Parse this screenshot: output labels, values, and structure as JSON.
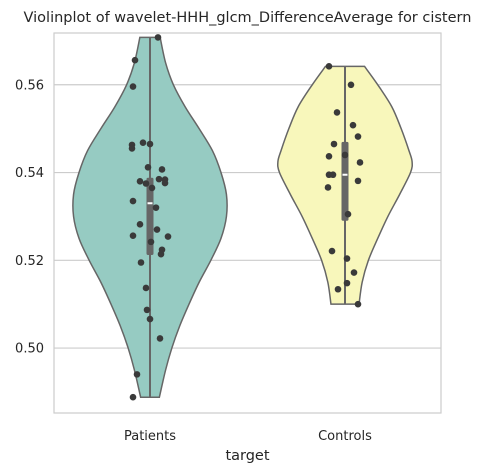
{
  "chart_data": {
    "type": "violin",
    "title": "Violinplot of wavelet-HHH_glcm_DifferenceAverage for cistern",
    "xlabel": "target",
    "ylabel": "",
    "ylim": [
      0.4852,
      0.5718
    ],
    "yticks": [
      0.5,
      0.52,
      0.54,
      0.56
    ],
    "ytick_labels": [
      "0.50",
      "0.52",
      "0.54",
      "0.56"
    ],
    "grid": true,
    "categories": [
      "Patients",
      "Controls"
    ],
    "colors": {
      "Patients": "#96cbc2",
      "Controls": "#f8f7bb",
      "outline": "#666666",
      "points": "#3a3a3a",
      "grid": "#cccccc",
      "axes": "#cccccc"
    },
    "violins": [
      {
        "name": "Patients",
        "min": 0.4888,
        "max": 0.5708,
        "q1": 0.5212,
        "median": 0.533,
        "q3": 0.5388,
        "profile": [
          [
            0.4888,
            0.12
          ],
          [
            0.495,
            0.2
          ],
          [
            0.5,
            0.28
          ],
          [
            0.505,
            0.38
          ],
          [
            0.51,
            0.5
          ],
          [
            0.515,
            0.63
          ],
          [
            0.52,
            0.78
          ],
          [
            0.525,
            0.91
          ],
          [
            0.53,
            0.98
          ],
          [
            0.535,
            0.98
          ],
          [
            0.54,
            0.91
          ],
          [
            0.545,
            0.8
          ],
          [
            0.55,
            0.63
          ],
          [
            0.555,
            0.45
          ],
          [
            0.56,
            0.3
          ],
          [
            0.565,
            0.2
          ],
          [
            0.5708,
            0.13
          ]
        ],
        "points": [
          [
            0.5708,
            0.08
          ],
          [
            0.5656,
            -0.15
          ],
          [
            0.5596,
            -0.17
          ],
          [
            0.5468,
            -0.07
          ],
          [
            0.5465,
            0.0
          ],
          [
            0.5463,
            -0.18
          ],
          [
            0.5455,
            -0.18
          ],
          [
            0.5412,
            -0.02
          ],
          [
            0.5407,
            0.12
          ],
          [
            0.5385,
            0.09
          ],
          [
            0.5384,
            0.15
          ],
          [
            0.538,
            -0.1
          ],
          [
            0.5376,
            0.15
          ],
          [
            0.5375,
            -0.04
          ],
          [
            0.5365,
            0.02
          ],
          [
            0.5335,
            -0.17
          ],
          [
            0.532,
            0.06
          ],
          [
            0.5282,
            -0.1
          ],
          [
            0.527,
            0.07
          ],
          [
            0.5256,
            -0.17
          ],
          [
            0.5254,
            0.18
          ],
          [
            0.5242,
            0.01
          ],
          [
            0.5224,
            0.12
          ],
          [
            0.5214,
            0.11
          ],
          [
            0.5195,
            -0.09
          ],
          [
            0.5137,
            -0.04
          ],
          [
            0.5087,
            -0.03
          ],
          [
            0.5066,
            0.0
          ],
          [
            0.5022,
            0.1
          ],
          [
            0.494,
            -0.13
          ],
          [
            0.4888,
            -0.17
          ]
        ]
      },
      {
        "name": "Controls",
        "min": 0.51,
        "max": 0.5642,
        "q1": 0.529,
        "median": 0.5395,
        "q3": 0.547,
        "profile": [
          [
            0.51,
            0.18
          ],
          [
            0.515,
            0.22
          ],
          [
            0.52,
            0.3
          ],
          [
            0.525,
            0.42
          ],
          [
            0.53,
            0.55
          ],
          [
            0.535,
            0.7
          ],
          [
            0.54,
            0.84
          ],
          [
            0.5425,
            0.86
          ],
          [
            0.545,
            0.82
          ],
          [
            0.55,
            0.72
          ],
          [
            0.555,
            0.6
          ],
          [
            0.56,
            0.42
          ],
          [
            0.5642,
            0.25
          ]
        ],
        "points": [
          [
            0.5642,
            -0.16
          ],
          [
            0.56,
            0.06
          ],
          [
            0.5537,
            -0.08
          ],
          [
            0.5508,
            0.08
          ],
          [
            0.5482,
            0.13
          ],
          [
            0.5465,
            -0.11
          ],
          [
            0.544,
            0.0
          ],
          [
            0.5437,
            -0.16
          ],
          [
            0.5423,
            0.15
          ],
          [
            0.5395,
            -0.16
          ],
          [
            0.5395,
            -0.12
          ],
          [
            0.5381,
            0.13
          ],
          [
            0.5366,
            -0.17
          ],
          [
            0.5305,
            0.03
          ],
          [
            0.5221,
            -0.13
          ],
          [
            0.5204,
            0.02
          ],
          [
            0.5172,
            0.09
          ],
          [
            0.5148,
            0.02
          ],
          [
            0.5134,
            -0.07
          ],
          [
            0.51,
            0.13
          ]
        ]
      }
    ]
  }
}
